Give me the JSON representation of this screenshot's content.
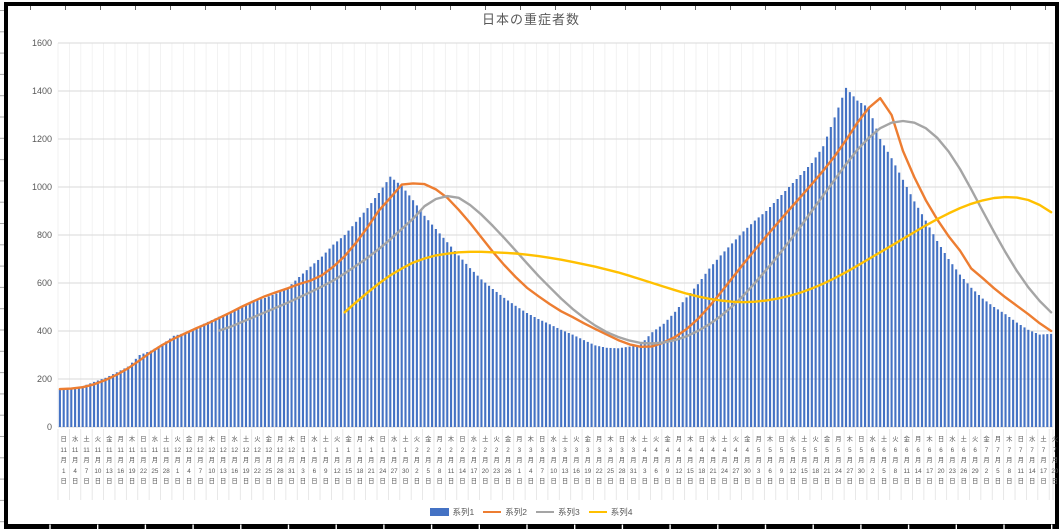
{
  "chart": {
    "title": "日本の重症者数",
    "legend_position": "bottom",
    "colors": {
      "bar": "#4472C4",
      "line2": "#ED7D31",
      "line3": "#A5A5A5",
      "line4": "#FFC000",
      "gridline": "#D9D9D9",
      "minor_vertical_gridline": "#EFEFEF",
      "axis_text": "#595959",
      "frame_border": "#000000",
      "background": "#FFFFFF"
    }
  },
  "chart_data": {
    "type": "combo-bar-line",
    "title": "日本の重症者数",
    "ylim": [
      0,
      1600
    ],
    "yticks": [
      0,
      200,
      400,
      600,
      800,
      1000,
      1200,
      1400,
      1600
    ],
    "grid": true,
    "legend_position": "bottom",
    "x_unit": "date",
    "x_tick_interval_days": 3,
    "x_tick_labels": {
      "weekday": [
        "日",
        "水",
        "土",
        "火",
        "金",
        "月",
        "木",
        "日",
        "水",
        "土",
        "火",
        "金",
        "月",
        "木",
        "日",
        "水",
        "土",
        "火",
        "金",
        "月",
        "木",
        "日",
        "水",
        "土",
        "火",
        "金",
        "月",
        "木",
        "日",
        "水",
        "土",
        "火",
        "金",
        "月",
        "木",
        "日",
        "水",
        "土",
        "火",
        "金",
        "月",
        "木",
        "日",
        "水",
        "土",
        "火",
        "金",
        "月",
        "木",
        "日",
        "水",
        "土",
        "火",
        "金",
        "月",
        "木",
        "日",
        "水",
        "土",
        "火",
        "金",
        "月",
        "木",
        "日",
        "水",
        "土",
        "火",
        "金",
        "月",
        "木",
        "日",
        "水",
        "土",
        "火",
        "金",
        "月",
        "木",
        "日",
        "水",
        "土",
        "火",
        "金",
        "月",
        "木",
        "日",
        "水",
        "土",
        "火"
      ],
      "month": [
        11,
        11,
        11,
        11,
        11,
        11,
        11,
        11,
        11,
        11,
        12,
        12,
        12,
        12,
        12,
        12,
        12,
        12,
        12,
        12,
        12,
        1,
        1,
        1,
        1,
        1,
        1,
        1,
        1,
        1,
        1,
        2,
        2,
        2,
        2,
        2,
        2,
        2,
        2,
        2,
        3,
        3,
        3,
        3,
        3,
        3,
        3,
        3,
        3,
        3,
        3,
        4,
        4,
        4,
        4,
        4,
        4,
        4,
        4,
        4,
        4,
        5,
        5,
        5,
        5,
        5,
        5,
        5,
        5,
        5,
        5,
        6,
        6,
        6,
        6,
        6,
        6,
        6,
        6,
        6,
        6,
        7,
        7,
        7,
        7,
        7,
        7,
        7
      ],
      "day": [
        1,
        4,
        7,
        10,
        13,
        16,
        19,
        22,
        25,
        28,
        1,
        4,
        7,
        10,
        13,
        16,
        19,
        22,
        25,
        28,
        31,
        3,
        6,
        9,
        12,
        15,
        18,
        21,
        24,
        27,
        30,
        2,
        5,
        8,
        11,
        14,
        17,
        20,
        23,
        26,
        1,
        4,
        7,
        10,
        13,
        16,
        19,
        22,
        25,
        28,
        31,
        3,
        6,
        9,
        12,
        15,
        18,
        21,
        24,
        27,
        30,
        3,
        6,
        9,
        12,
        15,
        18,
        21,
        24,
        27,
        30,
        2,
        5,
        8,
        11,
        14,
        17,
        20,
        23,
        26,
        29,
        2,
        5,
        8,
        11,
        14,
        17,
        20
      ],
      "month_suffix": "月",
      "day_suffix": "日"
    },
    "series": [
      {
        "name": "系列1",
        "type": "bar",
        "color": "#4472C4",
        "values": [
          158,
          162,
          170,
          188,
          205,
          228,
          252,
          300,
          318,
          345,
          380,
          392,
          415,
          438,
          460,
          478,
          500,
          522,
          538,
          556,
          580,
          625,
          668,
          710,
          760,
          800,
          855,
          912,
          975,
          1043,
          1005,
          945,
          880,
          825,
          770,
          715,
          662,
          615,
          575,
          538,
          505,
          475,
          450,
          428,
          405,
          385,
          362,
          340,
          330,
          328,
          335,
          345,
          395,
          430,
          480,
          540,
          595,
          660,
          715,
          765,
          815,
          860,
          900,
          950,
          1000,
          1050,
          1100,
          1170,
          1290,
          1413,
          1360,
          1330,
          1200,
          1120,
          1030,
          940,
          860,
          775,
          700,
          635,
          580,
          535,
          500,
          470,
          435,
          405,
          385,
          388
        ]
      },
      {
        "name": "系列2",
        "type": "line",
        "color": "#ED7D31",
        "values": [
          158,
          160,
          166,
          178,
          196,
          218,
          245,
          278,
          312,
          342,
          368,
          390,
          412,
          432,
          455,
          478,
          502,
          524,
          545,
          562,
          578,
          596,
          610,
          632,
          668,
          712,
          768,
          832,
          902,
          955,
          1010,
          1015,
          1012,
          990,
          955,
          905,
          850,
          790,
          730,
          675,
          625,
          580,
          545,
          512,
          482,
          458,
          432,
          408,
          385,
          362,
          344,
          334,
          336,
          352,
          375,
          408,
          450,
          502,
          560,
          620,
          680,
          738,
          795,
          850,
          905,
          958,
          1012,
          1068,
          1128,
          1195,
          1268,
          1330,
          1370,
          1300,
          1150,
          1040,
          945,
          865,
          795,
          735,
          660,
          620,
          578,
          540,
          505,
          470,
          432,
          400
        ]
      },
      {
        "name": "系列3",
        "type": "line",
        "color": "#A5A5A5",
        "values": [
          null,
          null,
          null,
          null,
          null,
          null,
          null,
          null,
          null,
          null,
          null,
          null,
          null,
          null,
          402,
          418,
          438,
          458,
          478,
          498,
          518,
          540,
          562,
          585,
          610,
          640,
          672,
          705,
          742,
          782,
          825,
          868,
          920,
          950,
          962,
          955,
          925,
          885,
          838,
          788,
          735,
          682,
          630,
          582,
          535,
          492,
          455,
          422,
          395,
          375,
          360,
          350,
          348,
          352,
          362,
          378,
          400,
          428,
          462,
          502,
          548,
          600,
          655,
          712,
          772,
          835,
          900,
          965,
          1030,
          1095,
          1155,
          1205,
          1245,
          1268,
          1275,
          1268,
          1245,
          1205,
          1148,
          1075,
          990,
          900,
          812,
          728,
          650,
          582,
          525,
          478
        ]
      },
      {
        "name": "系列4",
        "type": "line",
        "color": "#FFC000",
        "values": [
          null,
          null,
          null,
          null,
          null,
          null,
          null,
          null,
          null,
          null,
          null,
          null,
          null,
          null,
          null,
          null,
          null,
          null,
          null,
          null,
          null,
          null,
          null,
          null,
          null,
          478,
          520,
          560,
          598,
          632,
          660,
          685,
          702,
          715,
          722,
          728,
          730,
          730,
          728,
          726,
          723,
          718,
          712,
          705,
          697,
          688,
          678,
          668,
          656,
          644,
          630,
          615,
          600,
          585,
          570,
          556,
          544,
          534,
          527,
          522,
          520,
          522,
          527,
          535,
          546,
          560,
          577,
          597,
          620,
          645,
          672,
          700,
          728,
          756,
          784,
          812,
          840,
          866,
          890,
          912,
          930,
          944,
          954,
          958,
          956,
          946,
          925,
          895
        ]
      }
    ]
  }
}
